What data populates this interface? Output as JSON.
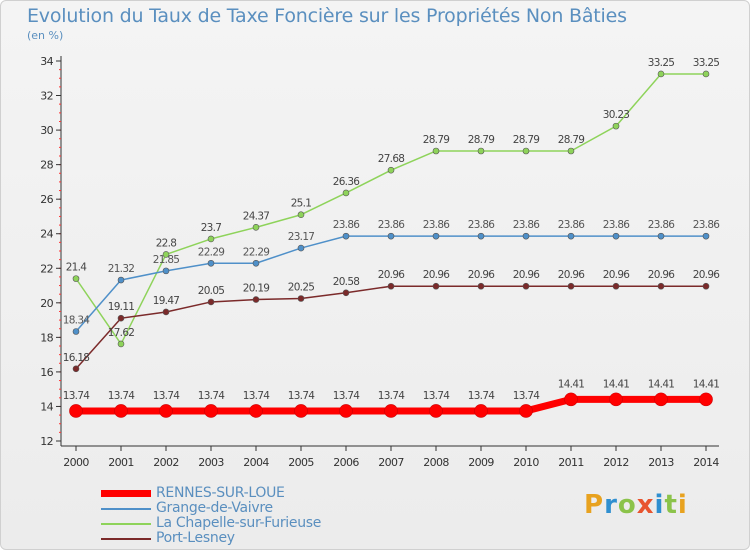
{
  "title": "Evolution du Taux de Taxe Foncière sur les Propriétés Non Bâties",
  "unit": "(en %)",
  "logo": {
    "text": "Proxiti",
    "colors": [
      "#e8a21f",
      "#2f8fd0",
      "#8bc34a",
      "#e8542f",
      "#2f8fd0",
      "#8bc34a",
      "#e8a21f"
    ]
  },
  "chart_data": {
    "type": "line",
    "x": [
      "2000",
      "2001",
      "2002",
      "2003",
      "2004",
      "2005",
      "2006",
      "2007",
      "2008",
      "2009",
      "2010",
      "2011",
      "2012",
      "2013",
      "2014"
    ],
    "ylim": [
      12,
      34
    ],
    "yticks": [
      12,
      14,
      16,
      18,
      20,
      22,
      24,
      26,
      28,
      30,
      32,
      34
    ],
    "grid": false,
    "legend_position": "bottom-left",
    "series": [
      {
        "name": "RENNES-SUR-LOUE",
        "color": "#ff0000",
        "values": [
          13.74,
          13.74,
          13.74,
          13.74,
          13.74,
          13.74,
          13.74,
          13.74,
          13.74,
          13.74,
          13.74,
          14.41,
          14.41,
          14.41,
          14.41
        ],
        "labels": [
          "13.74",
          "13.74",
          "13.74",
          "13.74",
          "13.74",
          "13.74",
          "13.74",
          "13.74",
          "13.74",
          "13.74",
          "13.74",
          "14.41",
          "14.41",
          "14.41",
          "14.41"
        ]
      },
      {
        "name": "Grange-de-Vaivre",
        "color": "#4f90c9",
        "values": [
          18.34,
          21.32,
          21.85,
          22.29,
          22.29,
          23.17,
          23.86,
          23.86,
          23.86,
          23.86,
          23.86,
          23.86,
          23.86,
          23.86,
          23.86
        ],
        "labels": [
          "18.34",
          "21.32",
          "21.85",
          "22.29",
          "22.29",
          "23.17",
          "23.86",
          "23.86",
          "23.86",
          "23.86",
          "23.86",
          "23.86",
          "23.86",
          "23.86",
          "23.86"
        ]
      },
      {
        "name": "La Chapelle-sur-Furieuse",
        "color": "#8ed35a",
        "values": [
          21.4,
          17.62,
          22.8,
          23.7,
          24.37,
          25.1,
          26.36,
          27.68,
          28.79,
          28.79,
          28.79,
          28.79,
          30.23,
          33.25,
          33.25
        ],
        "labels": [
          "21.4",
          "17.62",
          "22.8",
          "23.7",
          "24.37",
          "25.1",
          "26.36",
          "27.68",
          "28.79",
          "28.79",
          "28.79",
          "28.79",
          "30.23",
          "33.25",
          "33.25"
        ]
      },
      {
        "name": "Port-Lesney",
        "color": "#7b2a2a",
        "values": [
          16.18,
          19.11,
          19.47,
          20.05,
          20.19,
          20.25,
          20.58,
          20.96,
          20.96,
          20.96,
          20.96,
          20.96,
          20.96,
          20.96,
          20.96
        ],
        "labels": [
          "16.18",
          "19.11",
          "19.47",
          "20.05",
          "20.19",
          "20.25",
          "20.58",
          "20.96",
          "20.96",
          "20.96",
          "20.96",
          "20.96",
          "20.96",
          "20.96",
          "20.96"
        ]
      }
    ]
  }
}
